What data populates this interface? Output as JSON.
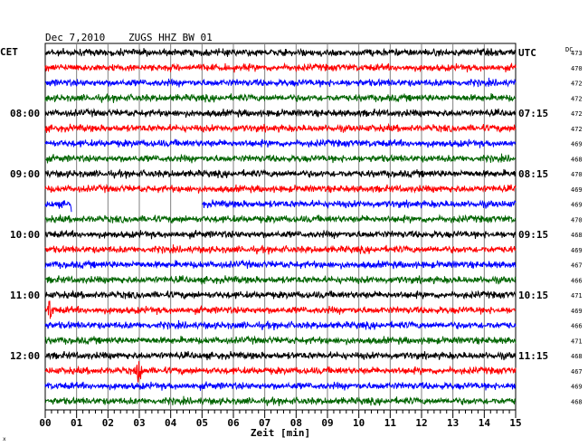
{
  "header": {
    "date": "Dec 7,2010",
    "station": "ZUGS HHZ BW 01"
  },
  "left_axis_label": "CET",
  "right_axis_label": "UTC",
  "dc_label": "DC",
  "x_axis_label": "Zeit [min]",
  "footer_mark": "x",
  "chart_data": {
    "type": "line",
    "title": "Dec 7,2010 ZUGS HHZ BW 01",
    "xlabel": "Zeit [min]",
    "ylabel": "CET",
    "xlim": [
      0,
      15
    ],
    "x_ticks": [
      "00",
      "01",
      "02",
      "03",
      "04",
      "05",
      "06",
      "07",
      "08",
      "09",
      "10",
      "11",
      "12",
      "13",
      "14",
      "15"
    ],
    "row_minutes": 15,
    "rows_per_hour": 4,
    "trace_colors": [
      "#000000",
      "#ff0000",
      "#0000ff",
      "#006400"
    ],
    "left_time_labels": [
      {
        "row": 4,
        "label": "08:00"
      },
      {
        "row": 8,
        "label": "09:00"
      },
      {
        "row": 12,
        "label": "10:00"
      },
      {
        "row": 16,
        "label": "11:00"
      },
      {
        "row": 20,
        "label": "12:00"
      }
    ],
    "right_time_labels": [
      {
        "row": 0,
        "label": "UTC"
      },
      {
        "row": 4,
        "label": "07:15"
      },
      {
        "row": 8,
        "label": "08:15"
      },
      {
        "row": 12,
        "label": "09:15"
      },
      {
        "row": 16,
        "label": "10:15"
      },
      {
        "row": 20,
        "label": "11:15"
      }
    ],
    "dc_offsets": [
      473,
      470,
      472,
      472,
      472,
      472,
      469,
      468,
      470,
      469,
      469,
      470,
      468,
      469,
      467,
      466,
      471,
      469,
      466,
      471,
      468,
      467,
      469,
      468
    ],
    "traces": {
      "rows": 24,
      "amplitude": "background noise",
      "gaps": [
        {
          "row": 10,
          "from_min": 0.85,
          "to_min": 5.0
        }
      ],
      "events": [
        {
          "row": 10,
          "at_min": 0.85,
          "type": "step"
        },
        {
          "row": 17,
          "at_min": 0.15,
          "type": "burst"
        },
        {
          "row": 21,
          "at_min": 3.0,
          "type": "burst"
        }
      ]
    }
  }
}
